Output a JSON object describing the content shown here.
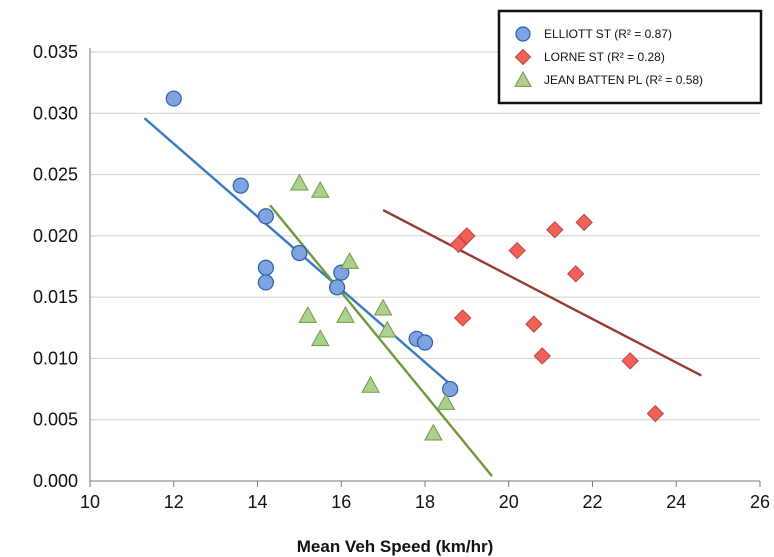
{
  "chart_data": {
    "type": "scatter",
    "title": "",
    "xlabel": "Mean Veh Speed (km/hr)",
    "ylabel": "",
    "xlim": [
      10,
      26
    ],
    "ylim": [
      0,
      0.035
    ],
    "x_ticks": [
      "10",
      "12",
      "14",
      "16",
      "18",
      "20",
      "22",
      "24",
      "26"
    ],
    "y_ticks": [
      "0.000",
      "0.005",
      "0.010",
      "0.015",
      "0.020",
      "0.025",
      "0.030",
      "0.035"
    ],
    "grid": "horizontal",
    "legend_position": "top-right",
    "series": [
      {
        "name": "ELLIOTT ST (R² = 0.87)",
        "marker": "circle",
        "color": "#7ea3e0",
        "line_color": "#3a78c2",
        "points": [
          [
            12.0,
            0.0312
          ],
          [
            13.6,
            0.0241
          ],
          [
            14.2,
            0.0216
          ],
          [
            14.2,
            0.0174
          ],
          [
            14.2,
            0.0162
          ],
          [
            15.0,
            0.0186
          ],
          [
            15.9,
            0.0158
          ],
          [
            16.0,
            0.017
          ],
          [
            17.8,
            0.0116
          ],
          [
            18.0,
            0.0113
          ],
          [
            18.6,
            0.0075
          ]
        ],
        "trend": [
          [
            11.3,
            0.0296
          ],
          [
            18.6,
            0.0079
          ]
        ]
      },
      {
        "name": "LORNE ST (R² = 0.28)",
        "marker": "diamond",
        "color": "#f0615a",
        "line_color": "#9a3a30",
        "points": [
          [
            18.8,
            0.0193
          ],
          [
            19.0,
            0.02
          ],
          [
            18.9,
            0.0133
          ],
          [
            20.2,
            0.0188
          ],
          [
            20.6,
            0.0128
          ],
          [
            20.8,
            0.0102
          ],
          [
            21.1,
            0.0205
          ],
          [
            21.6,
            0.0169
          ],
          [
            21.8,
            0.0211
          ],
          [
            22.9,
            0.0098
          ],
          [
            23.5,
            0.0055
          ]
        ],
        "trend": [
          [
            17.0,
            0.0221
          ],
          [
            24.6,
            0.0086
          ]
        ]
      },
      {
        "name": "JEAN BATTEN PL (R² = 0.58)",
        "marker": "triangle",
        "color": "#aed08f",
        "line_color": "#6a9a3a",
        "points": [
          [
            15.0,
            0.0243
          ],
          [
            15.5,
            0.0237
          ],
          [
            16.2,
            0.0179
          ],
          [
            15.2,
            0.0135
          ],
          [
            16.1,
            0.0135
          ],
          [
            15.5,
            0.0116
          ],
          [
            17.0,
            0.0141
          ],
          [
            17.1,
            0.0123
          ],
          [
            16.7,
            0.0078
          ],
          [
            18.5,
            0.0064
          ],
          [
            18.2,
            0.0039
          ]
        ],
        "trend": [
          [
            14.3,
            0.0225
          ],
          [
            19.6,
            0.0004
          ]
        ]
      }
    ]
  }
}
